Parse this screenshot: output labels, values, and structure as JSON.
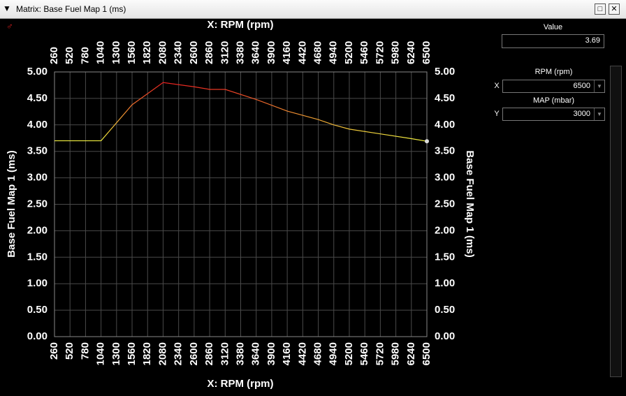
{
  "window": {
    "title": "Matrix: Base Fuel Map 1 (ms)"
  },
  "chart_data": {
    "type": "line",
    "x_label": "X: RPM (rpm)",
    "y_label": "Base Fuel Map 1 (ms)",
    "x": [
      260,
      1040,
      1560,
      2080,
      2600,
      2860,
      3120,
      3640,
      4160,
      4680,
      4940,
      5200,
      5720,
      6240,
      6500
    ],
    "values": [
      3.7,
      3.7,
      4.38,
      4.8,
      4.72,
      4.67,
      4.67,
      4.48,
      4.26,
      4.1,
      4.0,
      3.92,
      3.83,
      3.74,
      3.69
    ],
    "color_low": "#f0f040",
    "color_high": "#e82020",
    "xlim": [
      260,
      6500
    ],
    "xticks": [
      260,
      520,
      780,
      1040,
      1300,
      1560,
      1820,
      2080,
      2340,
      2600,
      2860,
      3120,
      3380,
      3640,
      3900,
      4160,
      4420,
      4680,
      4940,
      5200,
      5460,
      5720,
      5980,
      6240,
      6500
    ],
    "ylim": [
      0,
      5
    ],
    "yticks": [
      {
        "value": 0,
        "label": "0.00"
      },
      {
        "value": 0.5,
        "label": "0.50"
      },
      {
        "value": 1,
        "label": "1.00"
      },
      {
        "value": 1.5,
        "label": "1.50"
      },
      {
        "value": 2,
        "label": "2.00"
      },
      {
        "value": 2.5,
        "label": "2.50"
      },
      {
        "value": 3,
        "label": "3.00"
      },
      {
        "value": 3.5,
        "label": "3.50"
      },
      {
        "value": 4,
        "label": "4.00"
      },
      {
        "value": 4.5,
        "label": "4.50"
      },
      {
        "value": 5,
        "label": "5.00"
      }
    ],
    "grid": true
  },
  "panel": {
    "value_label": "Value",
    "value": 3.69,
    "x_axis_label": "RPM (rpm)",
    "x_letter": "X",
    "x_value": 6500,
    "y_axis_label": "MAP (mbar)",
    "y_letter": "Y",
    "y_value": 3000
  }
}
